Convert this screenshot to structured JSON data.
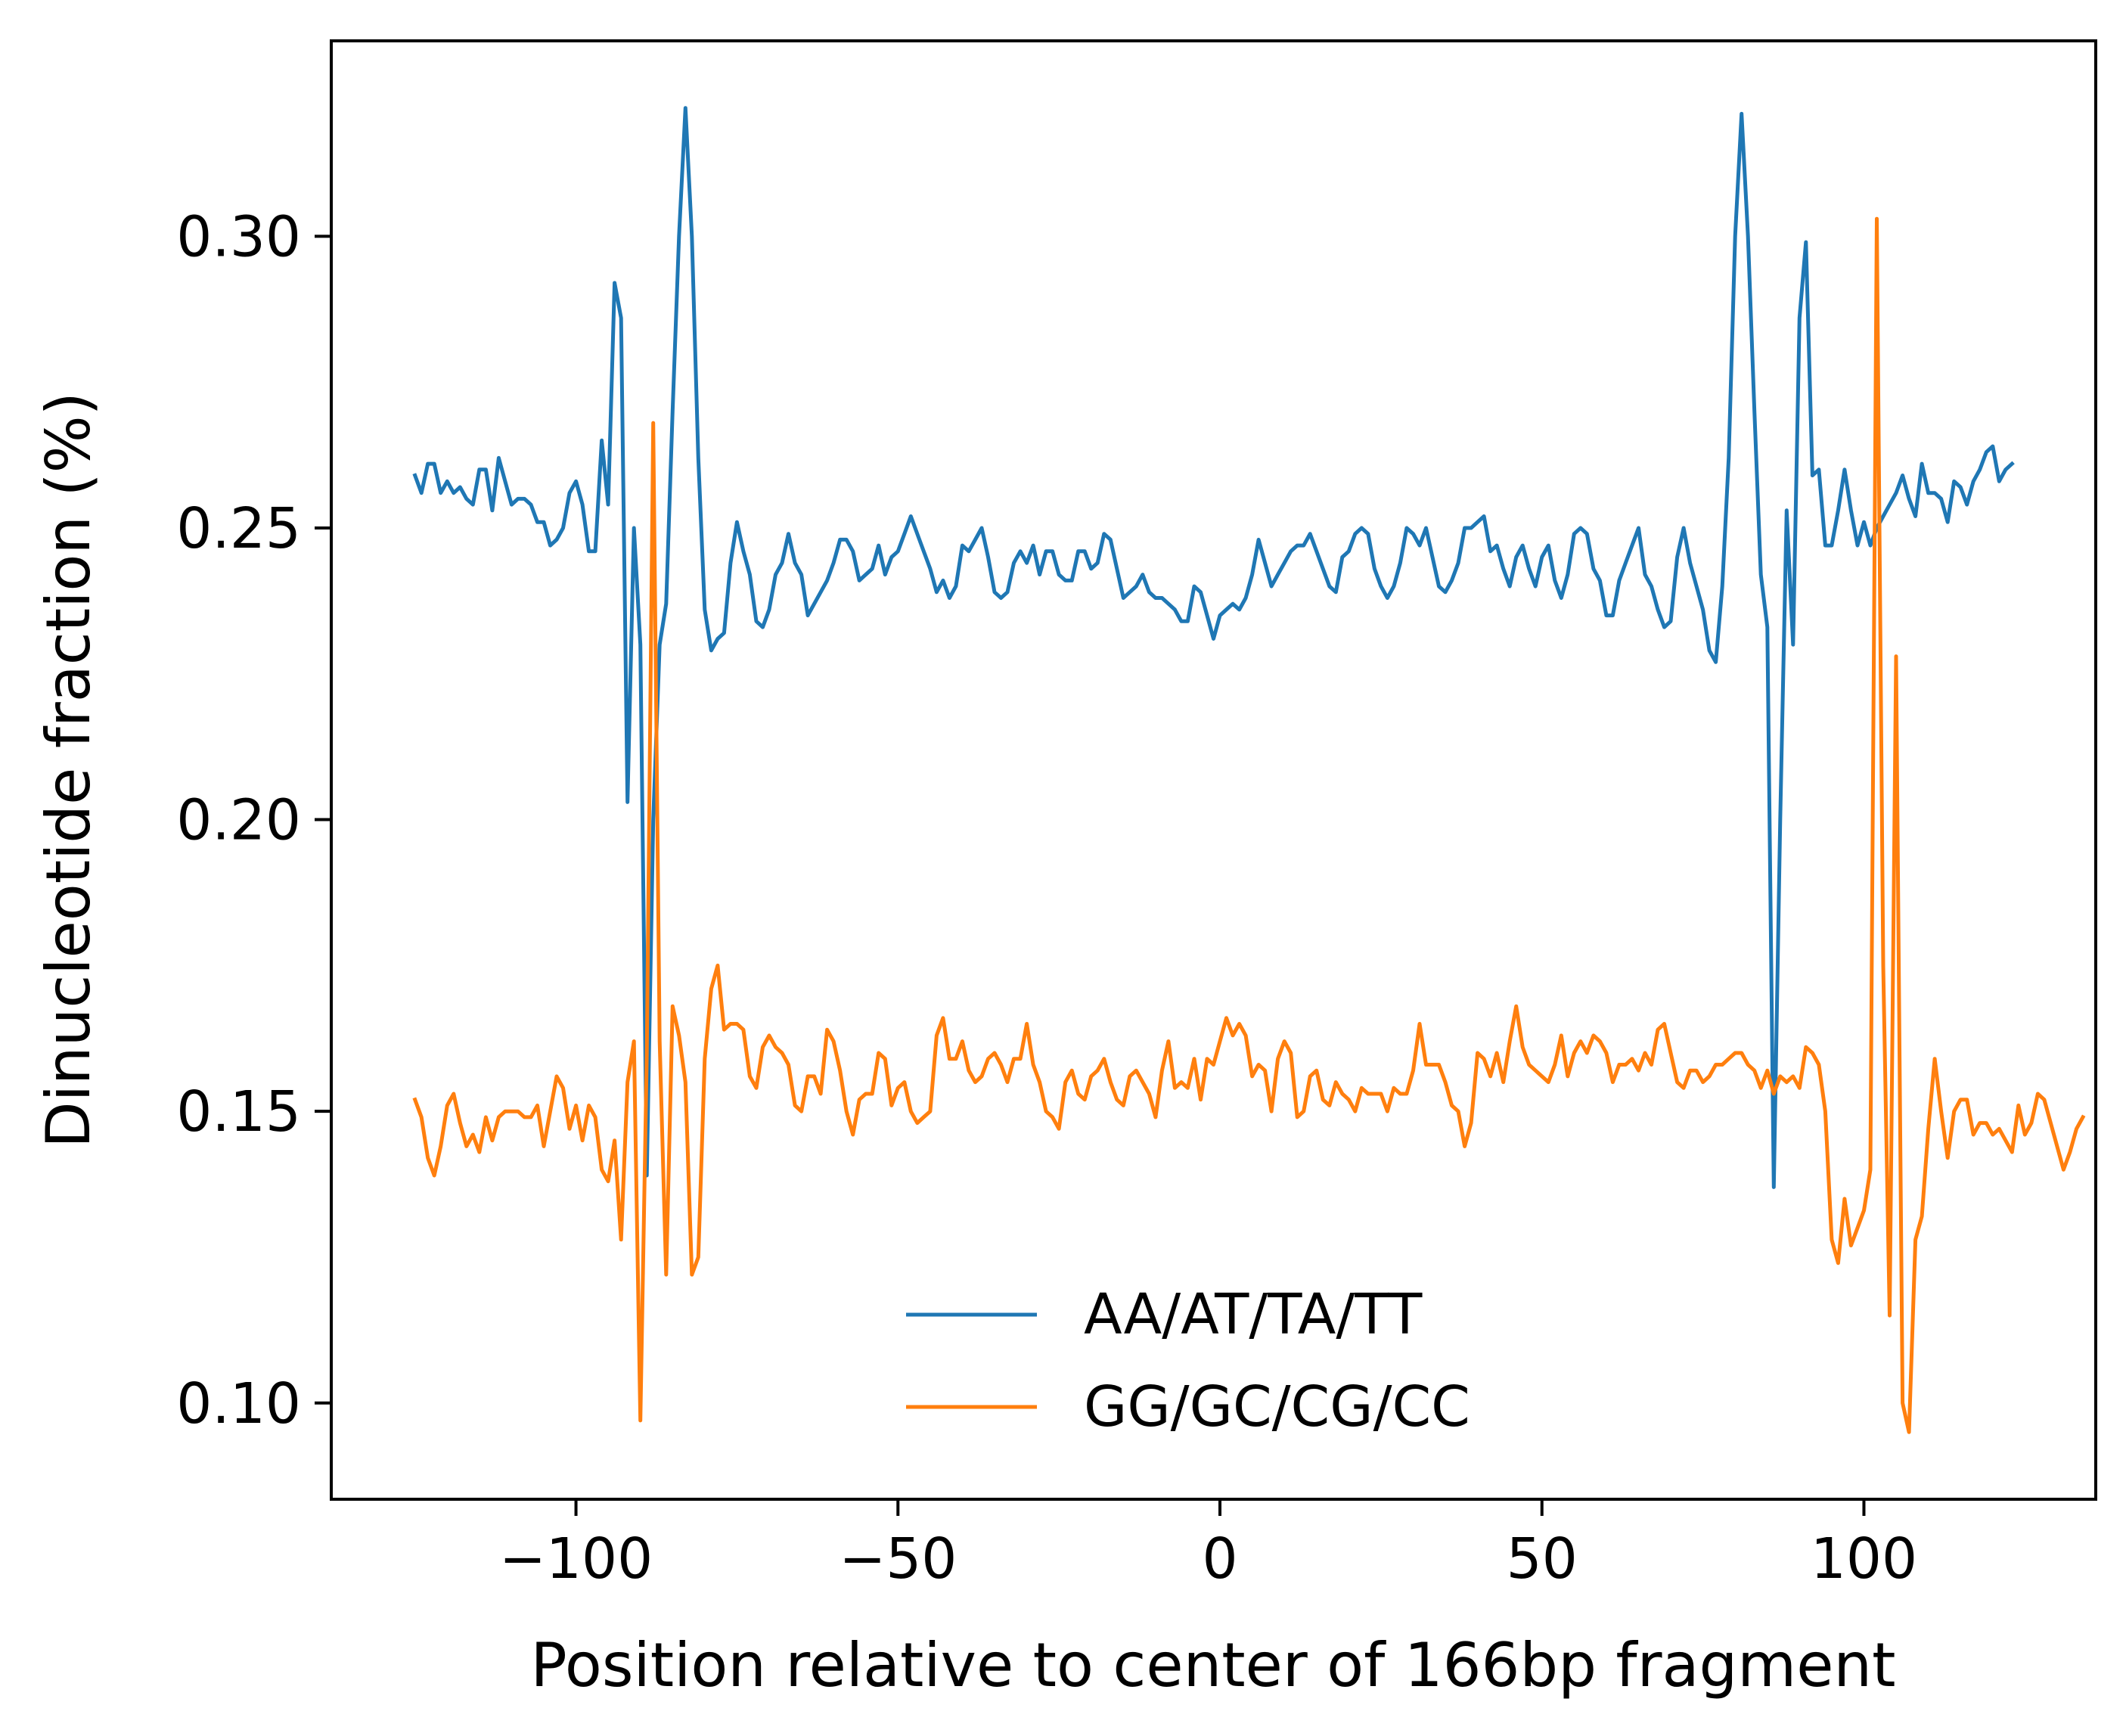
{
  "chart_data": {
    "type": "line",
    "title": "",
    "xlabel": "Position relative to center of 166bp fragment",
    "ylabel": "Dinucleotide fraction (%)",
    "xlim": [
      -138,
      136
    ],
    "ylim": [
      0.0835,
      0.3335
    ],
    "xticks": [
      -100,
      -50,
      0,
      50,
      100
    ],
    "xtick_labels": [
      "−100",
      "−50",
      "0",
      "50",
      "100"
    ],
    "yticks": [
      0.1,
      0.15,
      0.2,
      0.25,
      0.3
    ],
    "ytick_labels": [
      "0.10",
      "0.15",
      "0.20",
      "0.25",
      "0.30"
    ],
    "grid": false,
    "legend_position": "lower-center",
    "x_start": -125,
    "x_step": 1,
    "series": [
      {
        "name": "AA/AT/TA/TT",
        "color": "#1f77b4",
        "values": [
          0.259,
          0.256,
          0.261,
          0.261,
          0.256,
          0.258,
          0.256,
          0.257,
          0.255,
          0.254,
          0.26,
          0.26,
          0.253,
          0.262,
          0.258,
          0.254,
          0.255,
          0.255,
          0.254,
          0.251,
          0.251,
          0.247,
          0.248,
          0.25,
          0.256,
          0.258,
          0.254,
          0.246,
          0.246,
          0.265,
          0.254,
          0.292,
          0.286,
          0.203,
          0.25,
          0.23,
          0.139,
          0.2,
          0.23,
          0.237,
          0.27,
          0.3,
          0.322,
          0.3,
          0.262,
          0.236,
          0.229,
          0.231,
          0.232,
          0.244,
          0.251,
          0.246,
          0.242,
          0.234,
          0.233,
          0.236,
          0.242,
          0.244,
          0.249,
          0.244,
          0.242,
          0.235,
          0.237,
          0.239,
          0.241,
          0.244,
          0.248,
          0.248,
          0.246,
          0.241,
          0.242,
          0.243,
          0.247,
          0.242,
          0.245,
          0.246,
          0.249,
          0.252,
          0.249,
          0.246,
          0.243,
          0.239,
          0.241,
          0.238,
          0.24,
          0.247,
          0.246,
          0.248,
          0.25,
          0.245,
          0.239,
          0.238,
          0.239,
          0.244,
          0.246,
          0.244,
          0.247,
          0.242,
          0.246,
          0.246,
          0.242,
          0.241,
          0.241,
          0.246,
          0.246,
          0.243,
          0.244,
          0.249,
          0.248,
          0.243,
          0.238,
          0.239,
          0.24,
          0.242,
          0.239,
          0.238,
          0.238,
          0.237,
          0.236,
          0.234,
          0.234,
          0.24,
          0.239,
          0.235,
          0.231,
          0.235,
          0.236,
          0.237,
          0.236,
          0.238,
          0.242,
          0.248,
          0.244,
          0.24,
          0.242,
          0.244,
          0.246,
          0.247,
          0.247,
          0.249,
          0.246,
          0.243,
          0.24,
          0.239,
          0.245,
          0.246,
          0.249,
          0.25,
          0.249,
          0.243,
          0.24,
          0.238,
          0.24,
          0.244,
          0.25,
          0.249,
          0.247,
          0.25,
          0.245,
          0.24,
          0.239,
          0.241,
          0.244,
          0.25,
          0.25,
          0.251,
          0.252,
          0.246,
          0.247,
          0.243,
          0.24,
          0.245,
          0.247,
          0.243,
          0.24,
          0.245,
          0.247,
          0.241,
          0.238,
          0.242,
          0.249,
          0.25,
          0.249,
          0.243,
          0.241,
          0.235,
          0.235,
          0.241,
          0.244,
          0.247,
          0.25,
          0.242,
          0.24,
          0.236,
          0.233,
          0.234,
          0.245,
          0.25,
          0.244,
          0.24,
          0.236,
          0.229,
          0.227,
          0.24,
          0.262,
          0.3,
          0.321,
          0.3,
          0.27,
          0.242,
          0.233,
          0.137,
          0.2,
          0.253,
          0.23,
          0.286,
          0.299,
          0.259,
          0.26,
          0.247,
          0.247,
          0.253,
          0.26,
          0.253,
          0.247,
          0.251,
          0.247,
          0.25,
          0.252,
          0.254,
          0.256,
          0.259,
          0.255,
          0.252,
          0.261,
          0.256,
          0.256,
          0.255,
          0.251,
          0.258,
          0.257,
          0.254,
          0.258,
          0.26,
          0.263,
          0.264,
          0.258,
          0.26,
          0.261
        ]
      },
      {
        "name": "GG/GC/CG/CC",
        "color": "#ff7f0e",
        "values": [
          0.152,
          0.149,
          0.142,
          0.139,
          0.144,
          0.151,
          0.153,
          0.148,
          0.144,
          0.146,
          0.143,
          0.149,
          0.145,
          0.149,
          0.15,
          0.15,
          0.15,
          0.149,
          0.149,
          0.151,
          0.144,
          0.15,
          0.156,
          0.154,
          0.147,
          0.151,
          0.145,
          0.151,
          0.149,
          0.14,
          0.138,
          0.145,
          0.128,
          0.155,
          0.162,
          0.097,
          0.16,
          0.268,
          0.162,
          0.122,
          0.168,
          0.163,
          0.155,
          0.122,
          0.125,
          0.159,
          0.171,
          0.175,
          0.164,
          0.165,
          0.165,
          0.164,
          0.156,
          0.154,
          0.161,
          0.163,
          0.161,
          0.16,
          0.158,
          0.151,
          0.15,
          0.156,
          0.156,
          0.153,
          0.164,
          0.162,
          0.157,
          0.15,
          0.146,
          0.152,
          0.153,
          0.153,
          0.16,
          0.159,
          0.151,
          0.154,
          0.155,
          0.15,
          0.148,
          0.149,
          0.15,
          0.163,
          0.166,
          0.159,
          0.159,
          0.162,
          0.157,
          0.155,
          0.156,
          0.159,
          0.16,
          0.158,
          0.155,
          0.159,
          0.159,
          0.165,
          0.158,
          0.155,
          0.15,
          0.149,
          0.147,
          0.155,
          0.157,
          0.153,
          0.152,
          0.156,
          0.157,
          0.159,
          0.155,
          0.152,
          0.151,
          0.156,
          0.157,
          0.155,
          0.153,
          0.149,
          0.157,
          0.162,
          0.154,
          0.155,
          0.154,
          0.159,
          0.152,
          0.159,
          0.158,
          0.162,
          0.166,
          0.163,
          0.165,
          0.163,
          0.156,
          0.158,
          0.157,
          0.15,
          0.159,
          0.162,
          0.16,
          0.149,
          0.15,
          0.156,
          0.157,
          0.152,
          0.151,
          0.155,
          0.153,
          0.152,
          0.15,
          0.154,
          0.153,
          0.153,
          0.153,
          0.15,
          0.154,
          0.153,
          0.153,
          0.157,
          0.165,
          0.158,
          0.158,
          0.158,
          0.155,
          0.151,
          0.15,
          0.144,
          0.148,
          0.16,
          0.159,
          0.156,
          0.16,
          0.155,
          0.162,
          0.168,
          0.161,
          0.158,
          0.157,
          0.156,
          0.155,
          0.158,
          0.163,
          0.156,
          0.16,
          0.162,
          0.16,
          0.163,
          0.162,
          0.16,
          0.155,
          0.158,
          0.158,
          0.159,
          0.157,
          0.16,
          0.158,
          0.164,
          0.165,
          0.16,
          0.155,
          0.154,
          0.157,
          0.157,
          0.155,
          0.156,
          0.158,
          0.158,
          0.159,
          0.16,
          0.16,
          0.158,
          0.157,
          0.154,
          0.157,
          0.153,
          0.156,
          0.155,
          0.156,
          0.154,
          0.161,
          0.16,
          0.158,
          0.15,
          0.128,
          0.124,
          0.135,
          0.127,
          0.13,
          0.133,
          0.14,
          0.303,
          0.175,
          0.115,
          0.228,
          0.1,
          0.095,
          0.128,
          0.132,
          0.147,
          0.159,
          0.15,
          0.142,
          0.15,
          0.152,
          0.152,
          0.146,
          0.148,
          0.148,
          0.146,
          0.147,
          0.145,
          0.143,
          0.151,
          0.146,
          0.148,
          0.153,
          0.152,
          0.148,
          0.144,
          0.14,
          0.143,
          0.147,
          0.149
        ]
      }
    ]
  }
}
